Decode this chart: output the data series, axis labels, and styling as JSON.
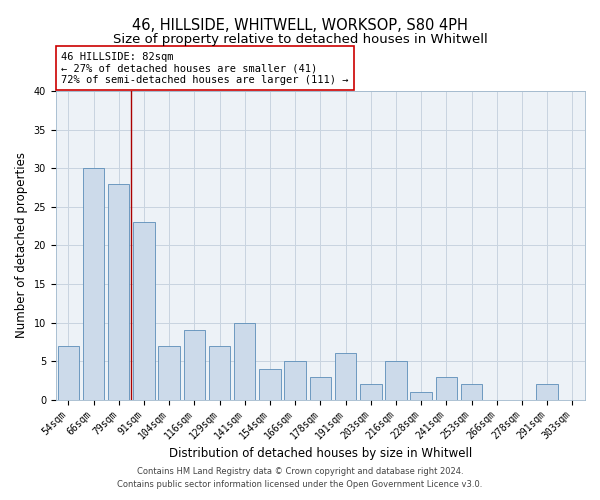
{
  "title": "46, HILLSIDE, WHITWELL, WORKSOP, S80 4PH",
  "subtitle": "Size of property relative to detached houses in Whitwell",
  "xlabel": "Distribution of detached houses by size in Whitwell",
  "ylabel": "Number of detached properties",
  "bar_labels": [
    "54sqm",
    "66sqm",
    "79sqm",
    "91sqm",
    "104sqm",
    "116sqm",
    "129sqm",
    "141sqm",
    "154sqm",
    "166sqm",
    "178sqm",
    "191sqm",
    "203sqm",
    "216sqm",
    "228sqm",
    "241sqm",
    "253sqm",
    "266sqm",
    "278sqm",
    "291sqm",
    "303sqm"
  ],
  "bar_values": [
    7,
    30,
    28,
    23,
    7,
    9,
    7,
    10,
    4,
    5,
    3,
    6,
    2,
    5,
    1,
    3,
    2,
    0,
    0,
    2,
    0
  ],
  "bar_color": "#ccdaea",
  "bar_edge_color": "#5b8db8",
  "vline_x": 2.5,
  "vline_color": "#aa0000",
  "annotation_text": "46 HILLSIDE: 82sqm\n← 27% of detached houses are smaller (41)\n72% of semi-detached houses are larger (111) →",
  "annotation_box_color": "#ffffff",
  "annotation_box_edge": "#cc0000",
  "grid_color": "#c8d4e0",
  "bg_color": "#edf2f7",
  "ylim": [
    0,
    40
  ],
  "yticks": [
    0,
    5,
    10,
    15,
    20,
    25,
    30,
    35,
    40
  ],
  "footer_line1": "Contains HM Land Registry data © Crown copyright and database right 2024.",
  "footer_line2": "Contains public sector information licensed under the Open Government Licence v3.0.",
  "title_fontsize": 10.5,
  "subtitle_fontsize": 9.5,
  "axis_label_fontsize": 8.5,
  "tick_fontsize": 7,
  "annotation_fontsize": 7.5,
  "footer_fontsize": 6
}
